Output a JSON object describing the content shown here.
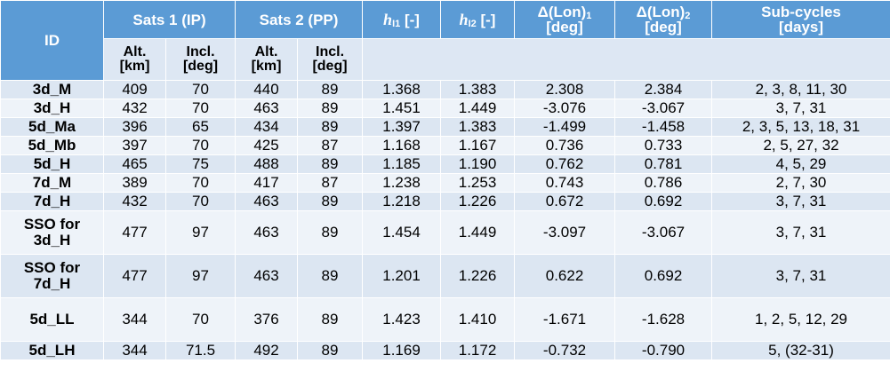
{
  "headers": {
    "id": "ID",
    "sats1": "Sats 1 (IP)",
    "sats2": "Sats 2 (PP)",
    "h1_sym": "h",
    "h1_sub": "I1",
    "h1_unit": " [-]",
    "h2_sym": "h",
    "h2_sub": "I2",
    "h2_unit": " [-]",
    "dlon1_line1": "Δ(Lon)",
    "dlon1_sub": "1",
    "dlon1_line2": "[deg]",
    "dlon2_line1": "Δ(Lon)",
    "dlon2_sub": "2",
    "dlon2_line2": "[deg]",
    "sub_line1": "Sub-cycles",
    "sub_line2": "[days]"
  },
  "subheaders": {
    "alt1_l1": "Alt.",
    "alt1_l2": "[km]",
    "incl1_l1": "Incl.",
    "incl1_l2": "[deg]",
    "alt2_l1": "Alt.",
    "alt2_l2": "[km]",
    "incl2_l1": "Incl.",
    "incl2_l2": "[deg]"
  },
  "rows": [
    {
      "id_l1": "3d_M",
      "id_l2": "",
      "alt1": "409",
      "incl1": "70",
      "alt2": "440",
      "incl2": "89",
      "h1": "1.368",
      "h2": "1.383",
      "dlon1": "2.308",
      "dlon2": "2.384",
      "sub": "2, 3, 8, 11, 30"
    },
    {
      "id_l1": "3d_H",
      "id_l2": "",
      "alt1": "432",
      "incl1": "70",
      "alt2": "463",
      "incl2": "89",
      "h1": "1.451",
      "h2": "1.449",
      "dlon1": "-3.076",
      "dlon2": "-3.067",
      "sub": "3, 7, 31"
    },
    {
      "id_l1": "5d_Ma",
      "id_l2": "",
      "alt1": "396",
      "incl1": "65",
      "alt2": "434",
      "incl2": "89",
      "h1": "1.397",
      "h2": "1.383",
      "dlon1": "-1.499",
      "dlon2": "-1.458",
      "sub": "2, 3, 5, 13, 18, 31"
    },
    {
      "id_l1": "5d_Mb",
      "id_l2": "",
      "alt1": "397",
      "incl1": "70",
      "alt2": "425",
      "incl2": "87",
      "h1": "1.168",
      "h2": "1.167",
      "dlon1": "0.736",
      "dlon2": "0.733",
      "sub": "2, 5, 27, 32"
    },
    {
      "id_l1": "5d_H",
      "id_l2": "",
      "alt1": "465",
      "incl1": "75",
      "alt2": "488",
      "incl2": "89",
      "h1": "1.185",
      "h2": "1.190",
      "dlon1": "0.762",
      "dlon2": "0.781",
      "sub": "4, 5, 29"
    },
    {
      "id_l1": "7d_M",
      "id_l2": "",
      "alt1": "389",
      "incl1": "70",
      "alt2": "417",
      "incl2": "87",
      "h1": "1.238",
      "h2": "1.253",
      "dlon1": "0.743",
      "dlon2": "0.786",
      "sub": "2, 7, 30"
    },
    {
      "id_l1": "7d_H",
      "id_l2": "",
      "alt1": "432",
      "incl1": "70",
      "alt2": "463",
      "incl2": "89",
      "h1": "1.218",
      "h2": "1.226",
      "dlon1": "0.672",
      "dlon2": "0.692",
      "sub": "3, 7, 31"
    },
    {
      "id_l1": "SSO for",
      "id_l2": "3d_H",
      "alt1": "477",
      "incl1": "97",
      "alt2": "463",
      "incl2": "89",
      "h1": "1.454",
      "h2": "1.449",
      "dlon1": "-3.097",
      "dlon2": "-3.067",
      "sub": "3, 7, 31"
    },
    {
      "id_l1": "SSO for",
      "id_l2": "7d_H",
      "alt1": "477",
      "incl1": "97",
      "alt2": "463",
      "incl2": "89",
      "h1": "1.201",
      "h2": "1.226",
      "dlon1": "0.622",
      "dlon2": "0.692",
      "sub": "3, 7, 31"
    },
    {
      "id_l1": "5d_LL",
      "id_l2": "",
      "alt1": "344",
      "incl1": "70",
      "alt2": "376",
      "incl2": "89",
      "h1": "1.423",
      "h2": "1.410",
      "dlon1": "-1.671",
      "dlon2": "-1.628",
      "sub": "1, 2, 5, 12, 29"
    },
    {
      "id_l1": "5d_LH",
      "id_l2": "",
      "alt1": "344",
      "incl1": "71.5",
      "alt2": "492",
      "incl2": "89",
      "h1": "1.169",
      "h2": "1.172",
      "dlon1": "-0.732",
      "dlon2": "-0.790",
      "sub": "5, (32-31)"
    }
  ],
  "colors": {
    "header": "#5b9bd5",
    "subheader": "#dde7f3",
    "row_odd": "#dce6f2",
    "row_even": "#eef3f9"
  }
}
